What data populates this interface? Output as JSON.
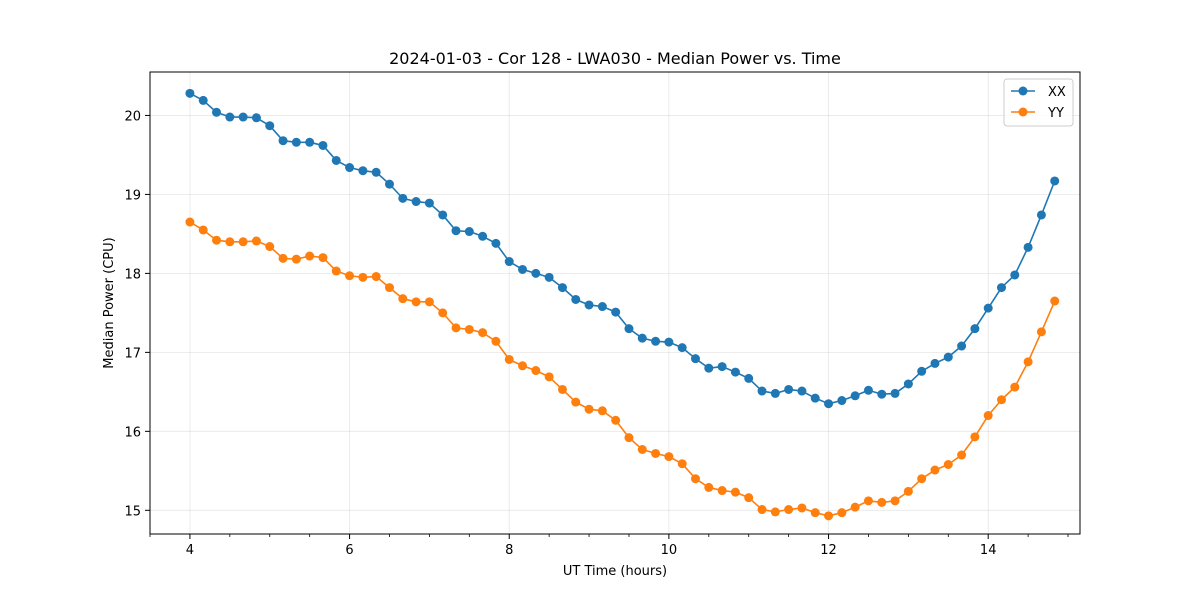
{
  "chart_data": {
    "type": "line",
    "title": "2024-01-03 - Cor 128 - LWA030 - Median Power vs. Time",
    "xlabel": "UT Time (hours)",
    "ylabel": "Median Power (CPU)",
    "xlim": [
      3.5,
      15.15
    ],
    "ylim": [
      14.7,
      20.55
    ],
    "xticks": [
      4,
      6,
      8,
      10,
      12,
      14
    ],
    "yticks": [
      15,
      16,
      17,
      18,
      19,
      20
    ],
    "grid": true,
    "legend_position": "top-right",
    "x": [
      4.0,
      4.1667,
      4.3333,
      4.5,
      4.6667,
      4.8333,
      5.0,
      5.1667,
      5.3333,
      5.5,
      5.6667,
      5.8333,
      6.0,
      6.1667,
      6.3333,
      6.5,
      6.6667,
      6.8333,
      7.0,
      7.1667,
      7.3333,
      7.5,
      7.6667,
      7.8333,
      8.0,
      8.1667,
      8.3333,
      8.5,
      8.6667,
      8.8333,
      9.0,
      9.1667,
      9.3333,
      9.5,
      9.6667,
      9.8333,
      10.0,
      10.1667,
      10.3333,
      10.5,
      10.6667,
      10.8333,
      11.0,
      11.1667,
      11.3333,
      11.5,
      11.6667,
      11.8333,
      12.0,
      12.1667,
      12.3333,
      12.5,
      12.6667,
      12.8333,
      13.0,
      13.1667,
      13.3333,
      13.5,
      13.6667,
      13.8333,
      14.0,
      14.1667,
      14.3333,
      14.5,
      14.6667,
      14.8333
    ],
    "series": [
      {
        "name": "XX",
        "color": "#1f77b4",
        "values": [
          20.28,
          20.19,
          20.04,
          19.98,
          19.98,
          19.97,
          19.87,
          19.68,
          19.66,
          19.66,
          19.62,
          19.43,
          19.34,
          19.3,
          19.28,
          19.13,
          18.95,
          18.91,
          18.89,
          18.74,
          18.54,
          18.53,
          18.47,
          18.38,
          18.15,
          18.05,
          18.0,
          17.95,
          17.82,
          17.67,
          17.6,
          17.58,
          17.51,
          17.3,
          17.18,
          17.14,
          17.13,
          17.06,
          16.92,
          16.8,
          16.82,
          16.75,
          16.67,
          16.51,
          16.48,
          16.53,
          16.51,
          16.42,
          16.35,
          16.39,
          16.45,
          16.52,
          16.47,
          16.48,
          16.6,
          16.76,
          16.86,
          16.94,
          17.08,
          17.3,
          17.56,
          17.82,
          17.98,
          18.33,
          18.74,
          19.17
        ]
      },
      {
        "name": "YY",
        "color": "#ff7f0e",
        "values": [
          18.65,
          18.55,
          18.42,
          18.4,
          18.4,
          18.41,
          18.34,
          18.19,
          18.18,
          18.22,
          18.2,
          18.03,
          17.97,
          17.95,
          17.96,
          17.82,
          17.68,
          17.64,
          17.64,
          17.5,
          17.31,
          17.29,
          17.25,
          17.14,
          16.91,
          16.83,
          16.77,
          16.69,
          16.53,
          16.37,
          16.28,
          16.26,
          16.14,
          15.92,
          15.77,
          15.72,
          15.68,
          15.59,
          15.4,
          15.29,
          15.25,
          15.23,
          15.16,
          15.01,
          14.98,
          15.01,
          15.03,
          14.97,
          14.93,
          14.97,
          15.04,
          15.12,
          15.1,
          15.12,
          15.24,
          15.4,
          15.51,
          15.58,
          15.7,
          15.93,
          16.2,
          16.4,
          16.56,
          16.88,
          17.26,
          17.65
        ]
      }
    ]
  }
}
